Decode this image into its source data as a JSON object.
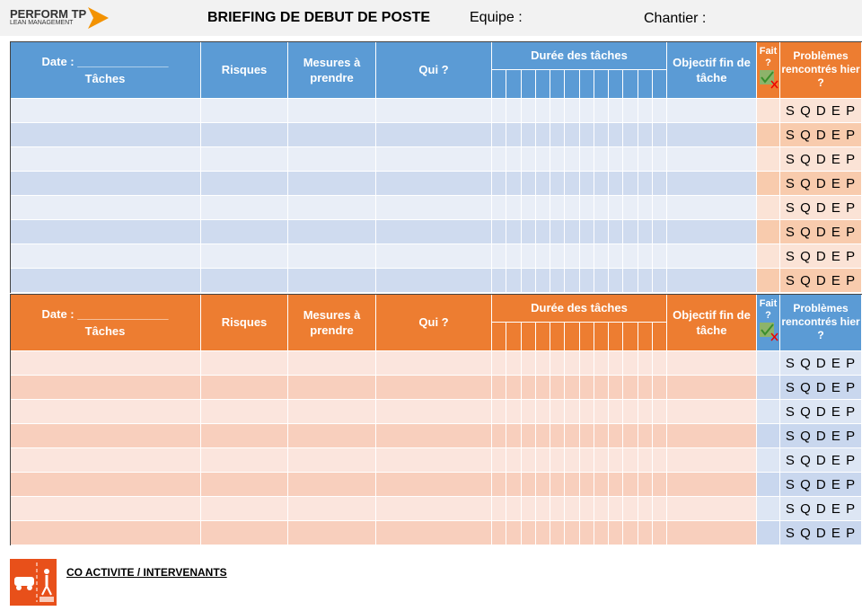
{
  "header": {
    "brand": "PERFORM TP",
    "brand_sub": "LEAN MANAGEMENT",
    "title": "BRIEFING DE DEBUT DE POSTE",
    "team": "Equipe :",
    "site": "Chantier :"
  },
  "sections": [
    {
      "columns": {
        "date": "Date : ______________",
        "tasks": "Tâches",
        "risks": "Risques",
        "measures": "Mesures à prendre",
        "who": "Qui ?",
        "duration": "Durée des tâches",
        "objective": "Objectif fin de tâche",
        "done": "Fait ?",
        "problems": "Problèmes rencontrés hier ?"
      },
      "rows": [
        "S Q D E P",
        "S Q D E P",
        "S Q D E P",
        "S Q D E P",
        "S Q D E P",
        "S Q D E P",
        "S Q D E P",
        "S Q D E P"
      ]
    },
    {
      "columns": {
        "date": "Date : ______________",
        "tasks": "Tâches",
        "risks": "Risques",
        "measures": "Mesures à prendre",
        "who": "Qui ?",
        "duration": "Durée des tâches",
        "objective": "Objectif fin de tâche",
        "done": "Fait ?",
        "problems": "Problèmes rencontrés hier ?"
      },
      "rows": [
        "S Q D E P",
        "S Q D E P",
        "S Q D E P",
        "S Q D E P",
        "S Q D E P",
        "S Q D E P",
        "S Q D E P",
        "S Q D E P"
      ]
    }
  ],
  "footer": {
    "label": "CO ACTIVITE / INTERVENANTS"
  }
}
